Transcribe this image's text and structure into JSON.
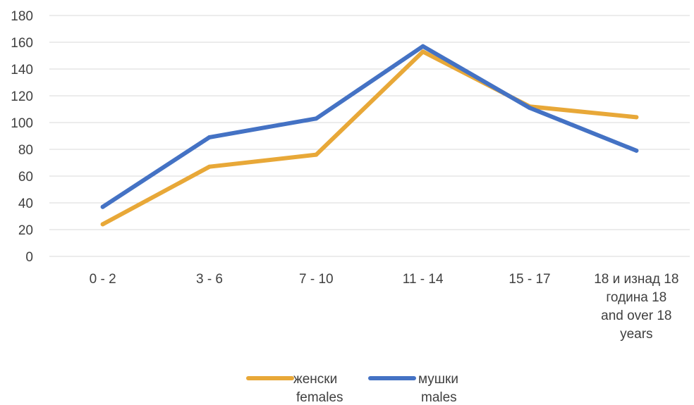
{
  "chart_data": {
    "type": "line",
    "categories": [
      [
        "0 - 2"
      ],
      [
        "3 - 6"
      ],
      [
        "7 - 10"
      ],
      [
        "11 - 14"
      ],
      [
        "15 - 17"
      ],
      [
        "18 и изнад 18",
        "година 18",
        "and over 18",
        "years"
      ]
    ],
    "series": [
      {
        "name": [
          "женски",
          "females"
        ],
        "color": "#E8A838",
        "values": [
          24,
          67,
          76,
          153,
          112,
          104
        ]
      },
      {
        "name": [
          "мушки",
          "males"
        ],
        "color": "#4472C4",
        "values": [
          37,
          89,
          103,
          157,
          111,
          79
        ]
      }
    ],
    "ylim": [
      0,
      180
    ],
    "yticks": [
      0,
      20,
      40,
      60,
      80,
      100,
      120,
      140,
      160,
      180
    ],
    "grid": true,
    "legend": "bottom",
    "gridColor": "#D9D9D9"
  }
}
